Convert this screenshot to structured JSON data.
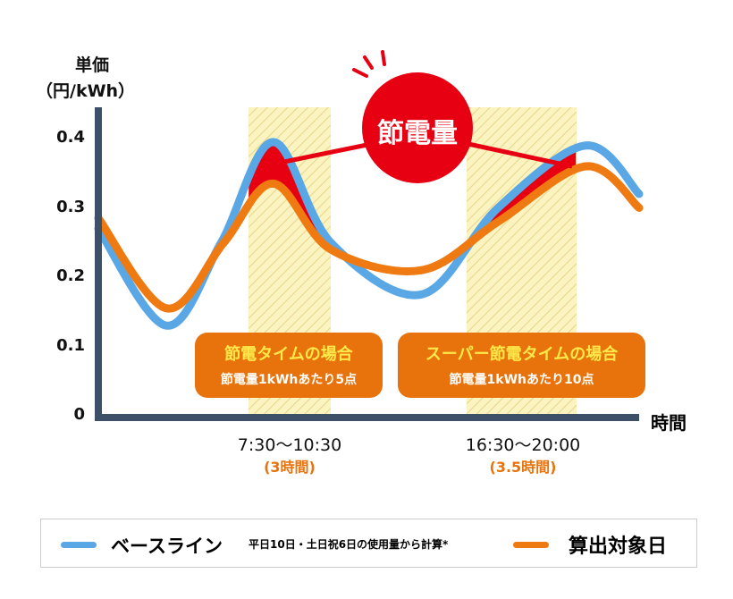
{
  "chart_data": {
    "type": "line",
    "ylabel": "単価",
    "yunit": "（円/kWh）",
    "xlabel": "時間",
    "ylim": [
      0,
      0.44
    ],
    "yticks": [
      "0",
      "0.1",
      "0.2",
      "0.3",
      "0.4"
    ],
    "ytick_values": [
      0,
      0.1,
      0.2,
      0.3,
      0.4
    ],
    "x_unit": "hour",
    "grid": false,
    "series": [
      {
        "name": "ベースライン",
        "color": "#5aa7e6",
        "points": [
          [
            2,
            0.27
          ],
          [
            4.5,
            0.13
          ],
          [
            6.5,
            0.25
          ],
          [
            8.4,
            0.395
          ],
          [
            10.5,
            0.25
          ],
          [
            14.5,
            0.175
          ],
          [
            17.5,
            0.3
          ],
          [
            20.3,
            0.39
          ],
          [
            22,
            0.32
          ]
        ]
      },
      {
        "name": "算出対象日",
        "color": "#f07a12",
        "points": [
          [
            2,
            0.285
          ],
          [
            4.5,
            0.155
          ],
          [
            6.6,
            0.25
          ],
          [
            8.4,
            0.335
          ],
          [
            10.5,
            0.24
          ],
          [
            14.5,
            0.21
          ],
          [
            17.5,
            0.28
          ],
          [
            20.3,
            0.36
          ],
          [
            22,
            0.3
          ]
        ]
      }
    ],
    "bands": [
      {
        "start": 7.5,
        "end": 10.5,
        "range_label": "7:30〜10:30",
        "duration_label": "(3時間)",
        "box_title": "節電タイムの場合",
        "box_sub": "節電量1kWhあたり5点"
      },
      {
        "start": 16.5,
        "end": 20,
        "range_label": "16:30〜20:00",
        "duration_label": "(3.5時間)",
        "box_title": "スーパー節電タイムの場合",
        "box_sub": "節電量1kWhあたり10点"
      }
    ],
    "annotation": "節電量",
    "colors": {
      "axis": "#3d5068",
      "savings": "#e60012",
      "band": "#fbf3c0",
      "box": "#e8730c",
      "box_title": "#ffe94a"
    }
  },
  "legend": {
    "baseline_label": "ベースライン",
    "baseline_note": "平日10日・土日祝6日の使用量から計算*",
    "target_label": "算出対象日"
  }
}
